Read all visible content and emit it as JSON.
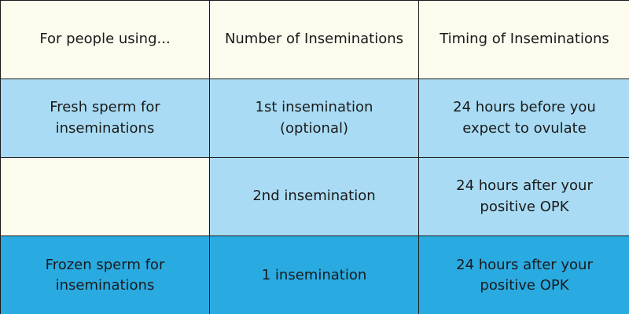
{
  "table": {
    "headers": [
      "For people using...",
      "Number of Inseminations",
      "Timing of Inseminations"
    ],
    "rows": [
      {
        "cells": [
          "Fresh sperm for\ninseminations",
          "1st insemination\n(optional)",
          "24 hours before you\nexpect to ovulate"
        ]
      },
      {
        "cells": [
          "",
          "2nd insemination",
          "24 hours after your\npositive OPK"
        ]
      },
      {
        "cells": [
          "Frozen sperm for\ninseminations",
          "1 insemination",
          "24 hours after your\npositive OPK"
        ]
      }
    ]
  },
  "colors": {
    "cream": "#fdfaee",
    "light_blue": "#a9dcf4",
    "mid_blue": "#29abe2",
    "border": "#1a1a1a"
  }
}
